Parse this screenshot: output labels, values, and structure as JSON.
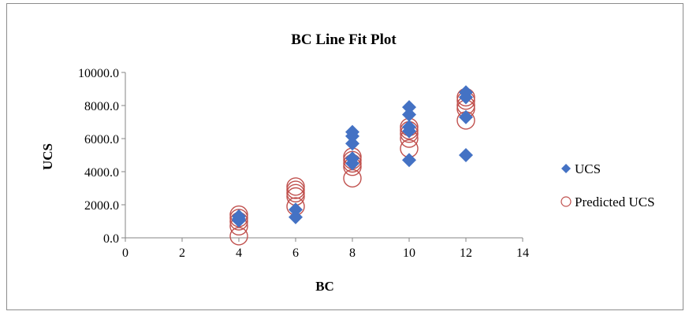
{
  "chart_data": {
    "type": "scatter",
    "title": "BC Line Fit  Plot",
    "xlabel": "BC",
    "ylabel": "UCS",
    "xlim": [
      0,
      14
    ],
    "ylim": [
      0,
      10000
    ],
    "x_ticks": [
      "0",
      "2",
      "4",
      "6",
      "8",
      "10",
      "12",
      "14"
    ],
    "y_ticks": [
      "0.0",
      "2000.0",
      "4000.0",
      "6000.0",
      "8000.0",
      "10000.0"
    ],
    "grid": false,
    "legend_position": "right",
    "series": [
      {
        "name": "UCS",
        "marker": "diamond",
        "color": "#4472C4",
        "points": [
          {
            "x": 4,
            "y": 1300
          },
          {
            "x": 4,
            "y": 1150
          },
          {
            "x": 4,
            "y": 1050
          },
          {
            "x": 6,
            "y": 1700
          },
          {
            "x": 6,
            "y": 1250
          },
          {
            "x": 8,
            "y": 6400
          },
          {
            "x": 8,
            "y": 6150
          },
          {
            "x": 8,
            "y": 5700
          },
          {
            "x": 8,
            "y": 4800
          },
          {
            "x": 8,
            "y": 4500
          },
          {
            "x": 10,
            "y": 7900
          },
          {
            "x": 10,
            "y": 7450
          },
          {
            "x": 10,
            "y": 6700
          },
          {
            "x": 10,
            "y": 6450
          },
          {
            "x": 10,
            "y": 4700
          },
          {
            "x": 12,
            "y": 8800
          },
          {
            "x": 12,
            "y": 8500
          },
          {
            "x": 12,
            "y": 7300
          },
          {
            "x": 12,
            "y": 5000
          }
        ]
      },
      {
        "name": "Predicted UCS",
        "marker": "circle",
        "color": "#C0504D",
        "points": [
          {
            "x": 4,
            "y": 1400
          },
          {
            "x": 4,
            "y": 1200
          },
          {
            "x": 4,
            "y": 1000
          },
          {
            "x": 4,
            "y": 700
          },
          {
            "x": 4,
            "y": 100
          },
          {
            "x": 6,
            "y": 3100
          },
          {
            "x": 6,
            "y": 2900
          },
          {
            "x": 6,
            "y": 2700
          },
          {
            "x": 6,
            "y": 2500
          },
          {
            "x": 6,
            "y": 1900
          },
          {
            "x": 8,
            "y": 4900
          },
          {
            "x": 8,
            "y": 4700
          },
          {
            "x": 8,
            "y": 4500
          },
          {
            "x": 8,
            "y": 4300
          },
          {
            "x": 8,
            "y": 3600
          },
          {
            "x": 10,
            "y": 6700
          },
          {
            "x": 10,
            "y": 6500
          },
          {
            "x": 10,
            "y": 6300
          },
          {
            "x": 10,
            "y": 6000
          },
          {
            "x": 10,
            "y": 5400
          },
          {
            "x": 12,
            "y": 8500
          },
          {
            "x": 12,
            "y": 8300
          },
          {
            "x": 12,
            "y": 8000
          },
          {
            "x": 12,
            "y": 7800
          },
          {
            "x": 12,
            "y": 7100
          }
        ]
      }
    ]
  }
}
